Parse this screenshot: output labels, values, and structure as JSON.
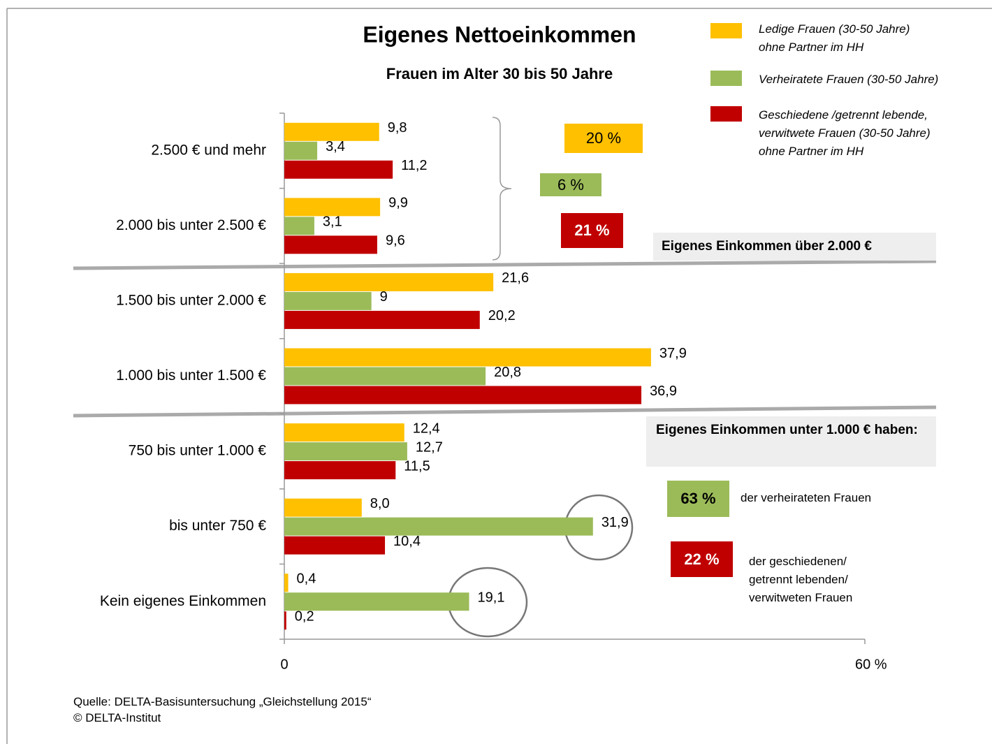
{
  "chart_data": {
    "type": "bar",
    "orientation": "horizontal",
    "title": "Eigenes Nettoeinkommen",
    "subtitle": "Frauen im Alter 30 bis 50 Jahre",
    "categories": [
      "2.500 € und mehr",
      "2.000 bis unter 2.500 €",
      "1.500 bis unter 2.000 €",
      "1.000 bis unter 1.500 €",
      "750 bis unter 1.000 €",
      "bis unter 750 €",
      "Kein eigenes Einkommen"
    ],
    "series": [
      {
        "name": "Ledige Frauen (30-50 Jahre) ohne Partner im HH",
        "color": "#ffc000",
        "values": [
          9.8,
          9.9,
          21.6,
          37.9,
          12.4,
          8.0,
          0.4
        ],
        "value_labels": [
          "9,8",
          "9,9",
          "21,6",
          "37,9",
          "12,4",
          "8,0",
          "0,4"
        ]
      },
      {
        "name": "Verheiratete Frauen (30-50 Jahre)",
        "color": "#9bbb59",
        "values": [
          3.4,
          3.1,
          9,
          20.8,
          12.7,
          31.9,
          19.1
        ],
        "value_labels": [
          "3,4",
          "3,1",
          "9",
          "20,8",
          "12,7",
          "31,9",
          "19,1"
        ]
      },
      {
        "name": "Geschiedene /getrennt lebende, verwitwete Frauen (30-50 Jahre) ohne Partner im HH",
        "color": "#c00000",
        "values": [
          11.2,
          9.6,
          20.2,
          36.9,
          11.5,
          10.4,
          0.2
        ],
        "value_labels": [
          "11,2",
          "9,6",
          "20,2",
          "36,9",
          "11,5",
          "10,4",
          "0,2"
        ]
      }
    ],
    "xlim": [
      0,
      60
    ],
    "xticks": [
      0,
      {
        "value": 60,
        "label": "60 %"
      }
    ],
    "legend": "top-right",
    "annotations": {
      "high_yellow": "20 %",
      "high_green": "6 %",
      "high_red": "21 %",
      "high_label": "Eigenes Einkommen über 2.000 €",
      "low_label": "Eigenes Einkommen unter 1.000 € haben:",
      "low_green": "63 %",
      "low_green_text": "der verheirateten  Frauen",
      "low_red": "22 %",
      "low_red_text": "der geschiedenen/ getrennt lebenden/ verwitweten  Frauen"
    },
    "source": "Quelle: DELTA-Basisuntersuchung „Gleichstellung 2015“",
    "copyright": "©  DELTA-Institut"
  }
}
